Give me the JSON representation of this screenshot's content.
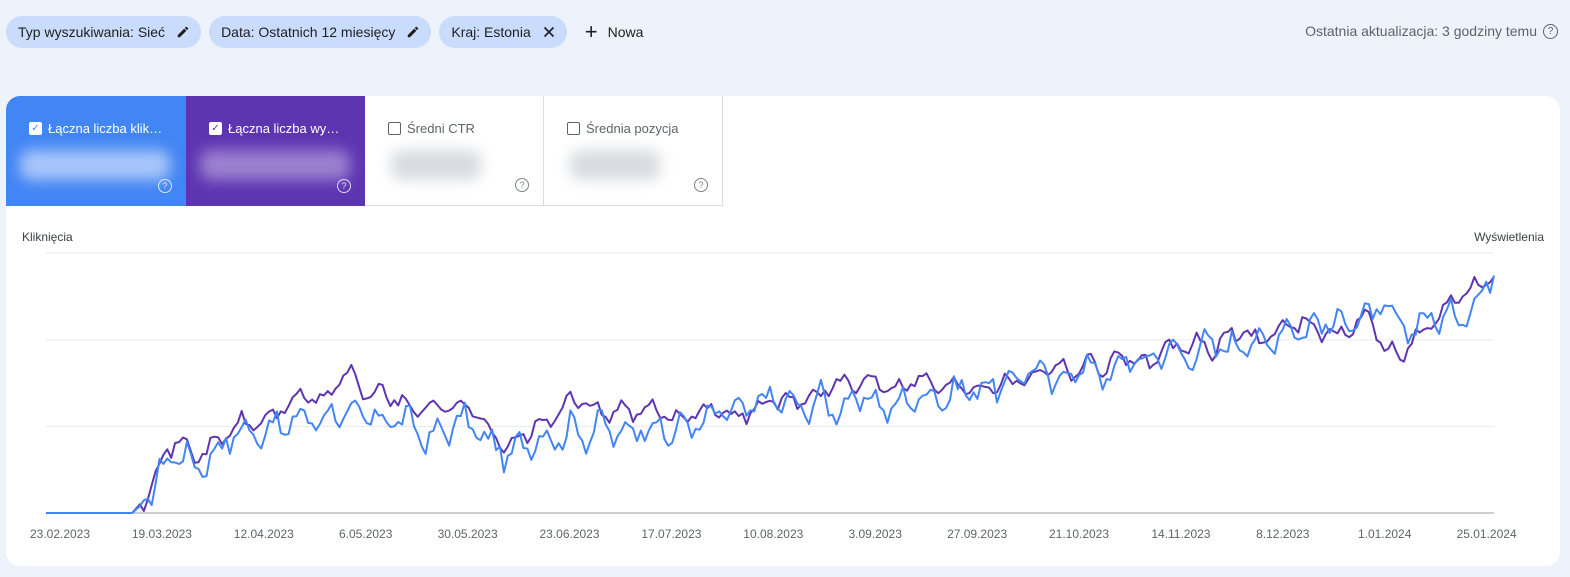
{
  "filters": {
    "chips": [
      {
        "label": "Typ wyszukiwania: Sieć",
        "action_icon": "pencil-icon"
      },
      {
        "label": "Data: Ostatnich 12 miesięcy",
        "action_icon": "pencil-icon"
      },
      {
        "label": "Kraj: Estonia",
        "action_icon": "close-icon"
      }
    ],
    "new_label": "Nowa",
    "last_update": "Ostatnia aktualizacja: 3 godziny temu"
  },
  "metrics": [
    {
      "label": "Łączna liczba klik…",
      "checked": true,
      "color": "#4285f4"
    },
    {
      "label": "Łączna liczba wy…",
      "checked": true,
      "color": "#5e35b1"
    },
    {
      "label": "Średni CTR",
      "checked": false
    },
    {
      "label": "Średnia pozycja",
      "checked": false
    }
  ],
  "chart_data": {
    "type": "line",
    "y_left_label": "Kliknięcia",
    "y_right_label": "Wyświetlenia",
    "x_tick_labels": [
      "23.02.2023",
      "19.03.2023",
      "12.04.2023",
      "6.05.2023",
      "30.05.2023",
      "23.06.2023",
      "17.07.2023",
      "10.08.2023",
      "3.09.2023",
      "27.09.2023",
      "21.10.2023",
      "14.11.2023",
      "8.12.2023",
      "1.01.2024",
      "25.01.2024"
    ],
    "y_scale_note": "values normalized 0-100 (axis tick labels hidden)",
    "grid": true,
    "series": [
      {
        "name": "Łączna liczba kliknięć",
        "color": "#4285f4",
        "keypoints": [
          [
            0,
            0
          ],
          [
            22,
            0
          ],
          [
            25,
            4
          ],
          [
            28,
            12
          ],
          [
            31,
            20
          ],
          [
            34,
            24
          ],
          [
            38,
            18
          ],
          [
            42,
            21
          ],
          [
            46,
            28
          ],
          [
            50,
            32
          ],
          [
            54,
            30
          ],
          [
            58,
            34
          ],
          [
            62,
            33
          ],
          [
            66,
            38
          ],
          [
            70,
            35
          ],
          [
            74,
            40
          ],
          [
            78,
            36
          ],
          [
            82,
            38
          ],
          [
            86,
            35
          ],
          [
            90,
            37
          ],
          [
            94,
            33
          ],
          [
            98,
            28
          ],
          [
            102,
            32
          ],
          [
            106,
            36
          ],
          [
            110,
            32
          ],
          [
            114,
            26
          ],
          [
            118,
            22
          ],
          [
            122,
            26
          ],
          [
            126,
            30
          ],
          [
            130,
            28
          ],
          [
            134,
            33
          ],
          [
            138,
            30
          ],
          [
            142,
            34
          ],
          [
            146,
            30
          ],
          [
            150,
            32
          ],
          [
            154,
            35
          ],
          [
            158,
            30
          ],
          [
            162,
            33
          ],
          [
            166,
            34
          ],
          [
            170,
            36
          ],
          [
            174,
            40
          ],
          [
            178,
            38
          ],
          [
            182,
            43
          ],
          [
            186,
            44
          ],
          [
            190,
            42
          ],
          [
            194,
            40
          ],
          [
            198,
            44
          ],
          [
            202,
            40
          ],
          [
            206,
            42
          ],
          [
            210,
            45
          ],
          [
            214,
            40
          ],
          [
            218,
            42
          ],
          [
            222,
            44
          ],
          [
            226,
            46
          ],
          [
            230,
            44
          ],
          [
            234,
            48
          ],
          [
            238,
            47
          ],
          [
            242,
            50
          ],
          [
            246,
            48
          ],
          [
            250,
            56
          ],
          [
            254,
            54
          ],
          [
            258,
            50
          ],
          [
            262,
            54
          ],
          [
            266,
            58
          ],
          [
            270,
            52
          ],
          [
            274,
            56
          ],
          [
            278,
            60
          ],
          [
            282,
            58
          ],
          [
            286,
            64
          ],
          [
            290,
            60
          ],
          [
            294,
            62
          ],
          [
            298,
            66
          ],
          [
            302,
            62
          ],
          [
            306,
            68
          ],
          [
            310,
            64
          ],
          [
            314,
            68
          ],
          [
            318,
            72
          ],
          [
            322,
            70
          ],
          [
            326,
            74
          ],
          [
            330,
            72
          ],
          [
            334,
            76
          ],
          [
            338,
            74
          ],
          [
            342,
            80
          ],
          [
            346,
            70
          ],
          [
            350,
            72
          ],
          [
            354,
            76
          ],
          [
            358,
            74
          ],
          [
            362,
            78
          ],
          [
            366,
            80
          ],
          [
            370,
            96
          ]
        ]
      },
      {
        "name": "Łączna liczba wyświetleń",
        "color": "#5e35b1",
        "keypoints": [
          [
            0,
            0
          ],
          [
            22,
            0
          ],
          [
            25,
            5
          ],
          [
            28,
            16
          ],
          [
            31,
            24
          ],
          [
            34,
            28
          ],
          [
            38,
            22
          ],
          [
            42,
            25
          ],
          [
            46,
            30
          ],
          [
            50,
            35
          ],
          [
            54,
            34
          ],
          [
            58,
            38
          ],
          [
            62,
            42
          ],
          [
            66,
            46
          ],
          [
            70,
            42
          ],
          [
            74,
            50
          ],
          [
            78,
            54
          ],
          [
            82,
            44
          ],
          [
            86,
            48
          ],
          [
            90,
            42
          ],
          [
            94,
            40
          ],
          [
            98,
            42
          ],
          [
            102,
            40
          ],
          [
            106,
            42
          ],
          [
            110,
            38
          ],
          [
            114,
            32
          ],
          [
            118,
            24
          ],
          [
            122,
            30
          ],
          [
            126,
            34
          ],
          [
            130,
            36
          ],
          [
            134,
            44
          ],
          [
            138,
            42
          ],
          [
            142,
            38
          ],
          [
            146,
            40
          ],
          [
            150,
            38
          ],
          [
            154,
            40
          ],
          [
            158,
            38
          ],
          [
            162,
            36
          ],
          [
            166,
            40
          ],
          [
            170,
            40
          ],
          [
            174,
            38
          ],
          [
            178,
            38
          ],
          [
            182,
            40
          ],
          [
            186,
            44
          ],
          [
            190,
            42
          ],
          [
            194,
            44
          ],
          [
            198,
            46
          ],
          [
            202,
            50
          ],
          [
            206,
            48
          ],
          [
            210,
            52
          ],
          [
            214,
            50
          ],
          [
            218,
            48
          ],
          [
            222,
            52
          ],
          [
            226,
            50
          ],
          [
            230,
            48
          ],
          [
            234,
            50
          ],
          [
            238,
            48
          ],
          [
            242,
            50
          ],
          [
            246,
            50
          ],
          [
            250,
            52
          ],
          [
            254,
            54
          ],
          [
            258,
            58
          ],
          [
            262,
            54
          ],
          [
            266,
            58
          ],
          [
            270,
            56
          ],
          [
            274,
            60
          ],
          [
            278,
            60
          ],
          [
            282,
            56
          ],
          [
            286,
            64
          ],
          [
            290,
            62
          ],
          [
            294,
            66
          ],
          [
            298,
            62
          ],
          [
            302,
            68
          ],
          [
            306,
            70
          ],
          [
            310,
            66
          ],
          [
            314,
            70
          ],
          [
            318,
            72
          ],
          [
            322,
            74
          ],
          [
            326,
            70
          ],
          [
            330,
            68
          ],
          [
            334,
            72
          ],
          [
            338,
            76
          ],
          [
            342,
            64
          ],
          [
            346,
            60
          ],
          [
            350,
            68
          ],
          [
            354,
            72
          ],
          [
            358,
            80
          ],
          [
            362,
            84
          ],
          [
            366,
            88
          ],
          [
            370,
            90
          ]
        ]
      }
    ]
  }
}
